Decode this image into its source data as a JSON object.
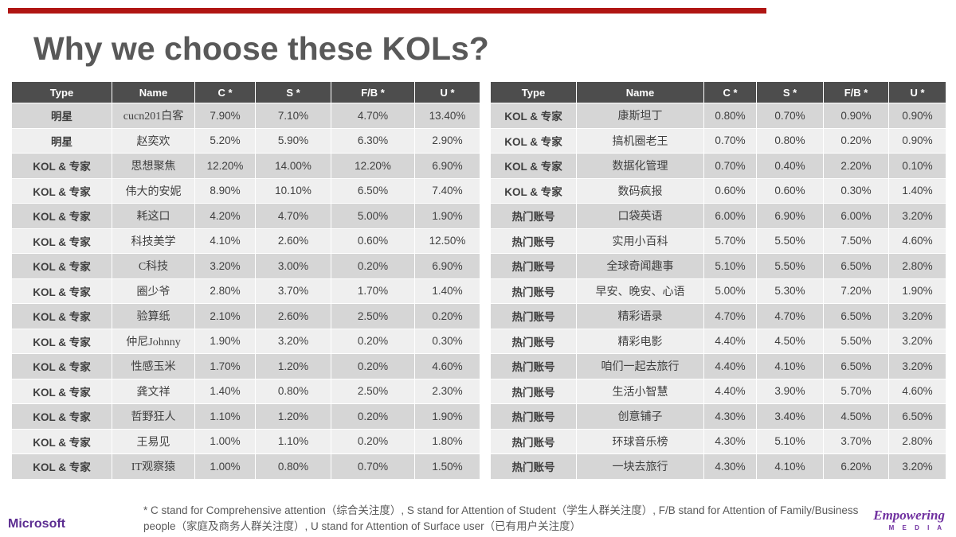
{
  "accent": {
    "top_bar_color": "#b01513",
    "header_bg": "#4d4d4d",
    "row_odd": "#d6d6d6",
    "row_even": "#efefef",
    "brand_purple": "#5c2d91"
  },
  "title": "Why we choose these KOLs?",
  "tables": [
    {
      "headers": [
        "Type",
        "Name",
        "C *",
        "S *",
        "F/B *",
        "U *"
      ],
      "rows": [
        [
          "明星",
          "cucn201白客",
          "7.90%",
          "7.10%",
          "4.70%",
          "13.40%"
        ],
        [
          "明星",
          "赵奕欢",
          "5.20%",
          "5.90%",
          "6.30%",
          "2.90%"
        ],
        [
          "KOL & 专家",
          "思想聚焦",
          "12.20%",
          "14.00%",
          "12.20%",
          "6.90%"
        ],
        [
          "KOL & 专家",
          "伟大的安妮",
          "8.90%",
          "10.10%",
          "6.50%",
          "7.40%"
        ],
        [
          "KOL & 专家",
          "耗这口",
          "4.20%",
          "4.70%",
          "5.00%",
          "1.90%"
        ],
        [
          "KOL & 专家",
          "科技美学",
          "4.10%",
          "2.60%",
          "0.60%",
          "12.50%"
        ],
        [
          "KOL & 专家",
          "C科技",
          "3.20%",
          "3.00%",
          "0.20%",
          "6.90%"
        ],
        [
          "KOL & 专家",
          "圈少爷",
          "2.80%",
          "3.70%",
          "1.70%",
          "1.40%"
        ],
        [
          "KOL & 专家",
          "验算纸",
          "2.10%",
          "2.60%",
          "2.50%",
          "0.20%"
        ],
        [
          "KOL & 专家",
          "仲尼Johnny",
          "1.90%",
          "3.20%",
          "0.20%",
          "0.30%"
        ],
        [
          "KOL & 专家",
          "性感玉米",
          "1.70%",
          "1.20%",
          "0.20%",
          "4.60%"
        ],
        [
          "KOL & 专家",
          "龚文祥",
          "1.40%",
          "0.80%",
          "2.50%",
          "2.30%"
        ],
        [
          "KOL & 专家",
          "哲野狂人",
          "1.10%",
          "1.20%",
          "0.20%",
          "1.90%"
        ],
        [
          "KOL & 专家",
          "王易见",
          "1.00%",
          "1.10%",
          "0.20%",
          "1.80%"
        ],
        [
          "KOL & 专家",
          "IT观察猿",
          "1.00%",
          "0.80%",
          "0.70%",
          "1.50%"
        ]
      ]
    },
    {
      "headers": [
        "Type",
        "Name",
        "C *",
        "S *",
        "F/B *",
        "U *"
      ],
      "rows": [
        [
          "KOL & 专家",
          "康斯坦丁",
          "0.80%",
          "0.70%",
          "0.90%",
          "0.90%"
        ],
        [
          "KOL & 专家",
          "搞机圈老王",
          "0.70%",
          "0.80%",
          "0.20%",
          "0.90%"
        ],
        [
          "KOL & 专家",
          "数据化管理",
          "0.70%",
          "0.40%",
          "2.20%",
          "0.10%"
        ],
        [
          "KOL & 专家",
          "数码疯报",
          "0.60%",
          "0.60%",
          "0.30%",
          "1.40%"
        ],
        [
          "热门账号",
          "口袋英语",
          "6.00%",
          "6.90%",
          "6.00%",
          "3.20%"
        ],
        [
          "热门账号",
          "实用小百科",
          "5.70%",
          "5.50%",
          "7.50%",
          "4.60%"
        ],
        [
          "热门账号",
          "全球奇闻趣事",
          "5.10%",
          "5.50%",
          "6.50%",
          "2.80%"
        ],
        [
          "热门账号",
          "早安、晚安、心语",
          "5.00%",
          "5.30%",
          "7.20%",
          "1.90%"
        ],
        [
          "热门账号",
          "精彩语录",
          "4.70%",
          "4.70%",
          "6.50%",
          "3.20%"
        ],
        [
          "热门账号",
          "精彩电影",
          "4.40%",
          "4.50%",
          "5.50%",
          "3.20%"
        ],
        [
          "热门账号",
          "咱们一起去旅行",
          "4.40%",
          "4.10%",
          "6.50%",
          "3.20%"
        ],
        [
          "热门账号",
          "生活小智慧",
          "4.40%",
          "3.90%",
          "5.70%",
          "4.60%"
        ],
        [
          "热门账号",
          "创意铺子",
          "4.30%",
          "3.40%",
          "4.50%",
          "6.50%"
        ],
        [
          "热门账号",
          "环球音乐榜",
          "4.30%",
          "5.10%",
          "3.70%",
          "2.80%"
        ],
        [
          "热门账号",
          "一块去旅行",
          "4.30%",
          "4.10%",
          "6.20%",
          "3.20%"
        ]
      ]
    }
  ],
  "footnote": "* C stand for Comprehensive attention（综合关注度）, S stand for Attention of Student（学生人群关注度）, F/B stand for Attention of Family/Business people（家庭及商务人群关注度）, U stand for Attention of Surface user（已有用户关注度）",
  "footer": {
    "microsoft": "Microsoft",
    "empowering": "Empowering",
    "media": "M E D I A"
  }
}
